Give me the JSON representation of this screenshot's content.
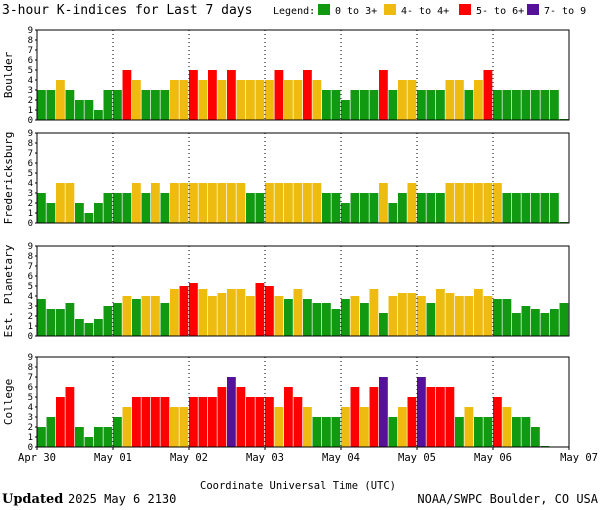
{
  "chart_data": {
    "type": "bar",
    "title": "3-hour K-indices for Last 7 days",
    "legend": {
      "label": "Legend:",
      "items": [
        {
          "label": "0 to 3+",
          "color": "#119911"
        },
        {
          "label": "4- to 4+",
          "color": "#eebb11"
        },
        {
          "label": "5- to 6+",
          "color": "#ff0000"
        },
        {
          "label": "7- to 9",
          "color": "#551199"
        }
      ]
    },
    "ylim": [
      0,
      9
    ],
    "yticks": [
      "0",
      "1",
      "2",
      "3",
      "4",
      "5",
      "6",
      "7",
      "8",
      "9"
    ],
    "xlabel": "Coordinate Universal Time (UTC)",
    "x_tick_labels": [
      "Apr 30",
      "May 01",
      "May 02",
      "May 03",
      "May 04",
      "May 05",
      "May 06",
      "May 07"
    ],
    "bins_per_day": 8,
    "series": [
      {
        "name": "Boulder",
        "values": [
          3,
          3,
          4,
          3,
          2,
          2,
          1,
          3,
          3,
          5,
          4,
          3,
          3,
          3,
          4,
          4,
          5,
          4,
          5,
          4,
          5,
          4,
          4,
          4,
          4,
          5,
          4,
          4,
          5,
          4,
          3,
          3,
          2,
          3,
          3,
          3,
          5,
          3,
          4,
          4,
          3,
          3,
          3,
          4,
          4,
          3,
          4,
          5,
          3,
          3,
          3,
          3,
          3,
          3,
          3,
          0.1
        ]
      },
      {
        "name": "Fredericksburg",
        "values": [
          3,
          2,
          4,
          4,
          2,
          1,
          2,
          3,
          3,
          3,
          4,
          3,
          4,
          3,
          4,
          4,
          4,
          4,
          4,
          4,
          4,
          4,
          3,
          3,
          4,
          4,
          4,
          4,
          4,
          4,
          3,
          3,
          2,
          3,
          3,
          3,
          4,
          2,
          3,
          4,
          3,
          3,
          3,
          4,
          4,
          4,
          4,
          4,
          4,
          3,
          3,
          3,
          3,
          3,
          3,
          0.1
        ]
      },
      {
        "name": "Est. Planetary",
        "values": [
          3.7,
          2.7,
          2.7,
          3.3,
          1.7,
          1.3,
          1.7,
          3,
          3.3,
          4,
          3.7,
          4,
          4,
          3.3,
          4.7,
          5,
          5.3,
          4.7,
          4,
          4.3,
          4.7,
          4.7,
          4,
          5.3,
          5,
          4,
          3.7,
          4.7,
          3.7,
          3.3,
          3.3,
          2.7,
          3.7,
          4,
          3.3,
          4.7,
          2.3,
          4,
          4.3,
          4.3,
          4,
          3.3,
          4.7,
          4.3,
          4,
          4,
          4.7,
          4,
          3.7,
          3.7,
          2.3,
          3,
          2.7,
          2.3,
          2.7,
          3.3
        ]
      },
      {
        "name": "College",
        "values": [
          2,
          3,
          5,
          6,
          2,
          1,
          2,
          2,
          3,
          4,
          5,
          5,
          5,
          5,
          4,
          4,
          5,
          5,
          5,
          6,
          7,
          6,
          5,
          5,
          5,
          4,
          6,
          5,
          4,
          3,
          3,
          3,
          4,
          6,
          4,
          6,
          7,
          3,
          4,
          5,
          7,
          6,
          6,
          6,
          3,
          4,
          3,
          3,
          5,
          4,
          3,
          3,
          2,
          0.1,
          0,
          0
        ]
      }
    ]
  },
  "footer": {
    "updated_label": "Updated",
    "updated_value": "2025 May  6 2130",
    "source": "NOAA/SWPC Boulder, CO USA"
  }
}
